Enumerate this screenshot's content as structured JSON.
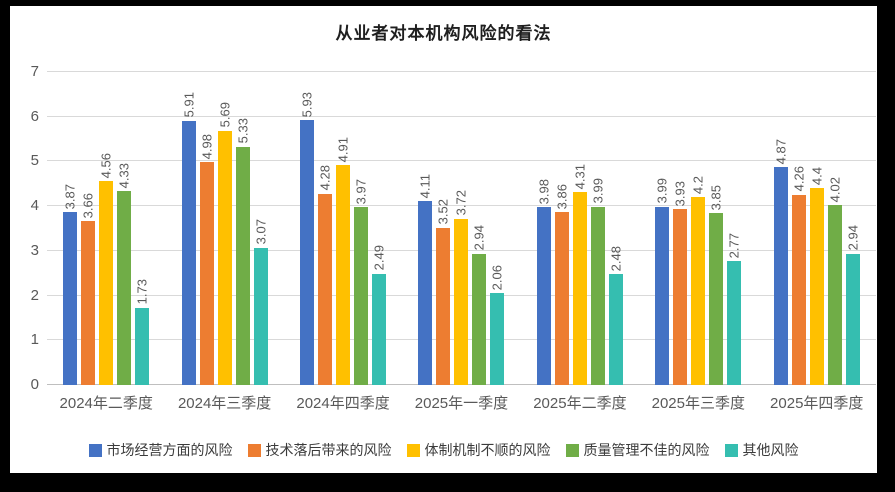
{
  "title": "从业者对本机构风险的看法",
  "chart_data": {
    "type": "bar",
    "title": "从业者对本机构风险的看法",
    "categories": [
      "2024年二季度",
      "2024年三季度",
      "2024年四季度",
      "2025年一季度",
      "2025年二季度",
      "2025年三季度",
      "2025年四季度"
    ],
    "series": [
      {
        "name": "市场经营方面的风险",
        "color": "#4472C4",
        "values": [
          3.87,
          5.91,
          5.93,
          4.11,
          3.98,
          3.99,
          4.87
        ],
        "labels": [
          "3.87",
          "5.91",
          "5.93",
          "4.11",
          "3.98",
          "3.99",
          "4.87"
        ]
      },
      {
        "name": "技术落后带来的风险",
        "color": "#ED7D31",
        "values": [
          3.66,
          4.98,
          4.28,
          3.52,
          3.86,
          3.93,
          4.26
        ],
        "labels": [
          "3.66",
          "4.98",
          "4.28",
          "3.52",
          "3.86",
          "3.93",
          "4.26"
        ]
      },
      {
        "name": "体制机制不顺的风险",
        "color": "#FFC000",
        "values": [
          4.56,
          5.69,
          4.91,
          3.72,
          4.31,
          4.2,
          4.4
        ],
        "labels": [
          "4.56",
          "5.69",
          "4.91",
          "3.72",
          "4.31",
          "4.2",
          "4.4"
        ]
      },
      {
        "name": "质量管理不佳的风险",
        "color": "#70AD47",
        "values": [
          4.33,
          5.33,
          3.97,
          2.94,
          3.99,
          3.85,
          4.02
        ],
        "labels": [
          "4.33",
          "5.33",
          "3.97",
          "2.94",
          "3.99",
          "3.85",
          "4.02"
        ]
      },
      {
        "name": "其他风险",
        "color": "#35BEB0",
        "values": [
          1.73,
          3.07,
          2.49,
          2.06,
          2.48,
          2.77,
          2.94
        ],
        "labels": [
          "1.73",
          "3.07",
          "2.49",
          "2.06",
          "2.48",
          "2.77",
          "2.94"
        ]
      }
    ],
    "ylim": [
      0,
      7
    ],
    "yticks": [
      0,
      1,
      2,
      3,
      4,
      5,
      6,
      7
    ],
    "grid": true,
    "legend_position": "bottom",
    "value_label_color": "#595959",
    "axis_label_color": "#595959",
    "gridline_color": "#d9d9d9",
    "frame_color": "#000000",
    "background_color": "#ffffff"
  }
}
